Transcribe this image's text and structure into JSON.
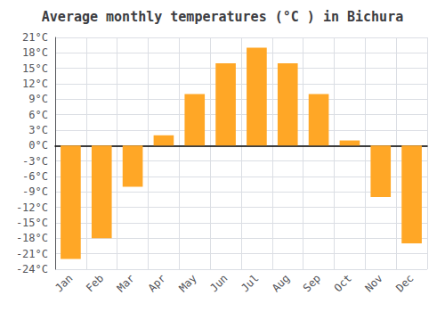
{
  "chart_data": {
    "type": "bar",
    "title": "Average monthly temperatures (°C ) in Bichura",
    "categories": [
      "Jan",
      "Feb",
      "Mar",
      "Apr",
      "May",
      "Jun",
      "Jul",
      "Aug",
      "Sep",
      "Oct",
      "Nov",
      "Dec"
    ],
    "values": [
      -22,
      -18,
      -8,
      2,
      10,
      16,
      19,
      16,
      10,
      1,
      -10,
      -19
    ],
    "color": "#FFA726",
    "ylim": [
      -24,
      21
    ],
    "yticks": [
      {
        "value": -24,
        "label": "-24°C"
      },
      {
        "value": -21,
        "label": "-21°C"
      },
      {
        "value": -18,
        "label": "-18°C"
      },
      {
        "value": -15,
        "label": "-15°C"
      },
      {
        "value": -12,
        "label": "-12°C"
      },
      {
        "value": -9,
        "label": "-9°C"
      },
      {
        "value": -6,
        "label": "-6°C"
      },
      {
        "value": -3,
        "label": "-3°C"
      },
      {
        "value": 0,
        "label": "0°C"
      },
      {
        "value": 3,
        "label": "3°C"
      },
      {
        "value": 6,
        "label": "6°C"
      },
      {
        "value": 9,
        "label": "9°C"
      },
      {
        "value": 12,
        "label": "12°C"
      },
      {
        "value": 15,
        "label": "15°C"
      },
      {
        "value": 18,
        "label": "18°C"
      },
      {
        "value": 21,
        "label": "21°C"
      }
    ],
    "grid": true
  }
}
